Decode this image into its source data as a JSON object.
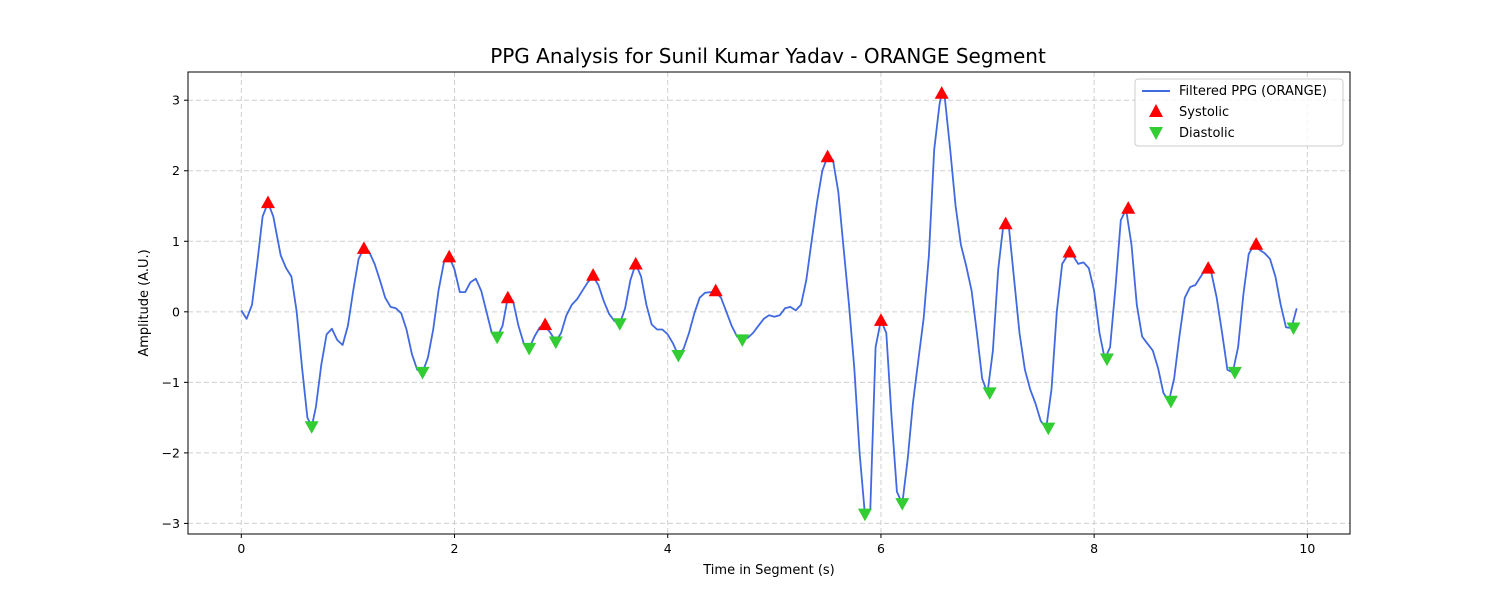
{
  "chart_data": {
    "type": "line",
    "title": "PPG Analysis for Sunil Kumar Yadav - ORANGE Segment",
    "xlabel": "Time in Segment (s)",
    "ylabel": "Amplitude (A.U.)",
    "xlim": [
      -0.5,
      10.4
    ],
    "ylim": [
      -3.15,
      3.4
    ],
    "xticks": [
      0,
      2,
      4,
      6,
      8,
      10
    ],
    "yticks": [
      -3,
      -2,
      -1,
      0,
      1,
      2,
      3
    ],
    "xtick_labels": [
      "0",
      "2",
      "4",
      "6",
      "8",
      "10"
    ],
    "ytick_labels": [
      "−3",
      "−2",
      "−1",
      "0",
      "1",
      "2",
      "3"
    ],
    "grid": true,
    "legend_position": "top-right",
    "colors": {
      "line": "#4169e1",
      "systolic": "#ff0000",
      "diastolic": "#32cd32"
    },
    "series": [
      {
        "name": "Filtered PPG (ORANGE)",
        "kind": "line",
        "points": [
          [
            0.0,
            0.02
          ],
          [
            0.05,
            -0.1
          ],
          [
            0.1,
            0.1
          ],
          [
            0.15,
            0.7
          ],
          [
            0.2,
            1.35
          ],
          [
            0.25,
            1.55
          ],
          [
            0.3,
            1.35
          ],
          [
            0.37,
            0.8
          ],
          [
            0.42,
            0.62
          ],
          [
            0.47,
            0.5
          ],
          [
            0.52,
            0.0
          ],
          [
            0.57,
            -0.8
          ],
          [
            0.62,
            -1.5
          ],
          [
            0.66,
            -1.63
          ],
          [
            0.7,
            -1.35
          ],
          [
            0.75,
            -0.75
          ],
          [
            0.8,
            -0.32
          ],
          [
            0.85,
            -0.24
          ],
          [
            0.9,
            -0.4
          ],
          [
            0.95,
            -0.47
          ],
          [
            1.0,
            -0.2
          ],
          [
            1.05,
            0.3
          ],
          [
            1.1,
            0.75
          ],
          [
            1.15,
            0.9
          ],
          [
            1.2,
            0.85
          ],
          [
            1.25,
            0.68
          ],
          [
            1.3,
            0.45
          ],
          [
            1.35,
            0.2
          ],
          [
            1.4,
            0.07
          ],
          [
            1.45,
            0.05
          ],
          [
            1.5,
            -0.02
          ],
          [
            1.55,
            -0.25
          ],
          [
            1.6,
            -0.6
          ],
          [
            1.65,
            -0.82
          ],
          [
            1.7,
            -0.86
          ],
          [
            1.75,
            -0.65
          ],
          [
            1.8,
            -0.25
          ],
          [
            1.85,
            0.3
          ],
          [
            1.9,
            0.7
          ],
          [
            1.95,
            0.78
          ],
          [
            2.0,
            0.6
          ],
          [
            2.05,
            0.28
          ],
          [
            2.1,
            0.28
          ],
          [
            2.15,
            0.42
          ],
          [
            2.2,
            0.47
          ],
          [
            2.25,
            0.3
          ],
          [
            2.3,
            0.0
          ],
          [
            2.35,
            -0.3
          ],
          [
            2.4,
            -0.36
          ],
          [
            2.45,
            -0.2
          ],
          [
            2.5,
            0.2
          ],
          [
            2.55,
            0.15
          ],
          [
            2.6,
            -0.2
          ],
          [
            2.65,
            -0.45
          ],
          [
            2.7,
            -0.52
          ],
          [
            2.75,
            -0.35
          ],
          [
            2.8,
            -0.22
          ],
          [
            2.85,
            -0.2
          ],
          [
            2.9,
            -0.3
          ],
          [
            2.95,
            -0.42
          ],
          [
            3.0,
            -0.3
          ],
          [
            3.05,
            -0.05
          ],
          [
            3.1,
            0.1
          ],
          [
            3.15,
            0.18
          ],
          [
            3.2,
            0.3
          ],
          [
            3.25,
            0.42
          ],
          [
            3.3,
            0.5
          ],
          [
            3.35,
            0.38
          ],
          [
            3.4,
            0.15
          ],
          [
            3.45,
            -0.03
          ],
          [
            3.5,
            -0.13
          ],
          [
            3.55,
            -0.17
          ],
          [
            3.6,
            0.05
          ],
          [
            3.65,
            0.45
          ],
          [
            3.7,
            0.68
          ],
          [
            3.75,
            0.5
          ],
          [
            3.8,
            0.1
          ],
          [
            3.85,
            -0.18
          ],
          [
            3.9,
            -0.25
          ],
          [
            3.95,
            -0.25
          ],
          [
            4.0,
            -0.32
          ],
          [
            4.05,
            -0.45
          ],
          [
            4.1,
            -0.62
          ],
          [
            4.15,
            -0.52
          ],
          [
            4.2,
            -0.3
          ],
          [
            4.25,
            -0.02
          ],
          [
            4.3,
            0.2
          ],
          [
            4.35,
            0.27
          ],
          [
            4.4,
            0.28
          ],
          [
            4.45,
            0.28
          ],
          [
            4.5,
            0.2
          ],
          [
            4.55,
            0.0
          ],
          [
            4.6,
            -0.2
          ],
          [
            4.65,
            -0.35
          ],
          [
            4.7,
            -0.38
          ],
          [
            4.75,
            -0.37
          ],
          [
            4.8,
            -0.3
          ],
          [
            4.85,
            -0.2
          ],
          [
            4.9,
            -0.1
          ],
          [
            4.95,
            -0.05
          ],
          [
            5.0,
            -0.07
          ],
          [
            5.05,
            -0.05
          ],
          [
            5.1,
            0.05
          ],
          [
            5.15,
            0.07
          ],
          [
            5.2,
            0.02
          ],
          [
            5.25,
            0.1
          ],
          [
            5.3,
            0.45
          ],
          [
            5.35,
            1.0
          ],
          [
            5.4,
            1.55
          ],
          [
            5.45,
            2.0
          ],
          [
            5.5,
            2.2
          ],
          [
            5.55,
            2.15
          ],
          [
            5.6,
            1.7
          ],
          [
            5.65,
            0.9
          ],
          [
            5.7,
            0.1
          ],
          [
            5.75,
            -0.8
          ],
          [
            5.8,
            -2.0
          ],
          [
            5.85,
            -2.87
          ],
          [
            5.9,
            -2.8
          ],
          [
            5.95,
            -0.5
          ],
          [
            6.0,
            -0.12
          ],
          [
            6.05,
            -0.3
          ],
          [
            6.1,
            -1.5
          ],
          [
            6.15,
            -2.55
          ],
          [
            6.2,
            -2.72
          ],
          [
            6.25,
            -2.1
          ],
          [
            6.3,
            -1.3
          ],
          [
            6.35,
            -0.7
          ],
          [
            6.4,
            -0.1
          ],
          [
            6.45,
            0.8
          ],
          [
            6.5,
            2.3
          ],
          [
            6.55,
            2.95
          ],
          [
            6.57,
            3.1
          ],
          [
            6.6,
            3.02
          ],
          [
            6.65,
            2.3
          ],
          [
            6.7,
            1.5
          ],
          [
            6.75,
            0.95
          ],
          [
            6.8,
            0.65
          ],
          [
            6.85,
            0.3
          ],
          [
            6.9,
            -0.3
          ],
          [
            6.95,
            -0.95
          ],
          [
            7.0,
            -1.15
          ],
          [
            7.05,
            -0.55
          ],
          [
            7.1,
            0.6
          ],
          [
            7.15,
            1.25
          ],
          [
            7.2,
            1.2
          ],
          [
            7.25,
            0.45
          ],
          [
            7.3,
            -0.3
          ],
          [
            7.35,
            -0.82
          ],
          [
            7.4,
            -1.1
          ],
          [
            7.45,
            -1.3
          ],
          [
            7.5,
            -1.55
          ],
          [
            7.55,
            -1.65
          ],
          [
            7.6,
            -1.1
          ],
          [
            7.65,
            0.0
          ],
          [
            7.7,
            0.68
          ],
          [
            7.75,
            0.8
          ],
          [
            7.8,
            0.8
          ],
          [
            7.85,
            0.68
          ],
          [
            7.9,
            0.7
          ],
          [
            7.95,
            0.62
          ],
          [
            8.0,
            0.3
          ],
          [
            8.05,
            -0.3
          ],
          [
            8.1,
            -0.67
          ],
          [
            8.15,
            -0.5
          ],
          [
            8.2,
            0.35
          ],
          [
            8.25,
            1.3
          ],
          [
            8.3,
            1.45
          ],
          [
            8.35,
            0.95
          ],
          [
            8.4,
            0.1
          ],
          [
            8.45,
            -0.35
          ],
          [
            8.5,
            -0.45
          ],
          [
            8.55,
            -0.55
          ],
          [
            8.6,
            -0.8
          ],
          [
            8.65,
            -1.15
          ],
          [
            8.7,
            -1.27
          ],
          [
            8.75,
            -0.95
          ],
          [
            8.8,
            -0.35
          ],
          [
            8.85,
            0.2
          ],
          [
            8.9,
            0.35
          ],
          [
            8.95,
            0.38
          ],
          [
            9.0,
            0.5
          ],
          [
            9.05,
            0.62
          ],
          [
            9.1,
            0.55
          ],
          [
            9.15,
            0.2
          ],
          [
            9.2,
            -0.3
          ],
          [
            9.25,
            -0.82
          ],
          [
            9.3,
            -0.86
          ],
          [
            9.35,
            -0.5
          ],
          [
            9.4,
            0.25
          ],
          [
            9.45,
            0.82
          ],
          [
            9.5,
            0.95
          ],
          [
            9.55,
            0.88
          ],
          [
            9.6,
            0.83
          ],
          [
            9.65,
            0.75
          ],
          [
            9.7,
            0.5
          ],
          [
            9.75,
            0.1
          ],
          [
            9.8,
            -0.22
          ],
          [
            9.85,
            -0.23
          ],
          [
            9.9,
            0.05
          ]
        ]
      },
      {
        "name": "Systolic",
        "kind": "marker-up",
        "points": [
          [
            0.25,
            1.55
          ],
          [
            1.15,
            0.9
          ],
          [
            1.95,
            0.78
          ],
          [
            2.5,
            0.2
          ],
          [
            2.85,
            -0.18
          ],
          [
            3.3,
            0.52
          ],
          [
            3.7,
            0.68
          ],
          [
            4.45,
            0.3
          ],
          [
            5.5,
            2.2
          ],
          [
            6.0,
            -0.12
          ],
          [
            6.57,
            3.1
          ],
          [
            7.17,
            1.25
          ],
          [
            7.77,
            0.85
          ],
          [
            8.32,
            1.47
          ],
          [
            9.07,
            0.62
          ],
          [
            9.52,
            0.96
          ]
        ]
      },
      {
        "name": "Diastolic",
        "kind": "marker-down",
        "points": [
          [
            0.66,
            -1.63
          ],
          [
            1.7,
            -0.86
          ],
          [
            2.4,
            -0.36
          ],
          [
            2.7,
            -0.52
          ],
          [
            2.95,
            -0.43
          ],
          [
            3.55,
            -0.17
          ],
          [
            4.1,
            -0.62
          ],
          [
            4.7,
            -0.4
          ],
          [
            5.85,
            -2.87
          ],
          [
            6.2,
            -2.72
          ],
          [
            7.02,
            -1.15
          ],
          [
            7.57,
            -1.65
          ],
          [
            8.12,
            -0.67
          ],
          [
            8.72,
            -1.27
          ],
          [
            9.32,
            -0.86
          ],
          [
            9.87,
            -0.23
          ]
        ]
      }
    ]
  }
}
